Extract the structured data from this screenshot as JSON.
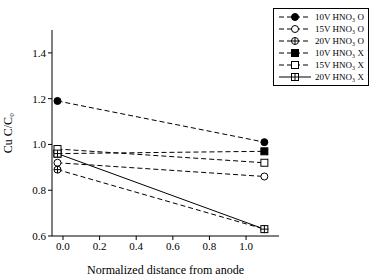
{
  "chart_data": {
    "type": "line",
    "x_label": "Normalized distance from anode",
    "y_label": "Cu C/C₀",
    "x": [
      -0.03,
      1.1
    ],
    "xlim": [
      -0.06,
      1.18
    ],
    "xticks": [
      {
        "value": 0,
        "label": "0.0"
      },
      0.2,
      0.4,
      0.6,
      0.8,
      {
        "value": 1,
        "label": "1.0"
      }
    ],
    "ylim": [
      0.6,
      1.5
    ],
    "yticks": [
      0.6,
      0.8,
      {
        "value": 1,
        "label": "1.0"
      },
      1.2,
      1.4
    ],
    "legend": "upper right",
    "series": [
      {
        "name": "10V HNO₃ O",
        "color": "#000000",
        "marker": "circle_filled",
        "line_style": "dashed",
        "values": [
          1.19,
          1.01
        ]
      },
      {
        "name": "15V HNO₃ O",
        "color": "#000000",
        "marker": "circle_open",
        "line_style": "dashed",
        "values": [
          0.92,
          0.86
        ]
      },
      {
        "name": "20V HNO₃ O",
        "color": "#000000",
        "marker": "circle_cross",
        "line_style": "dashed",
        "values": [
          0.89,
          0.63
        ]
      },
      {
        "name": "10V HNO₃ X",
        "color": "#000000",
        "marker": "square_filled",
        "line_style": "dashed",
        "values": [
          0.96,
          0.97
        ]
      },
      {
        "name": "15V HNO₃ X",
        "color": "#000000",
        "marker": "square_open",
        "line_style": "dashed",
        "values": [
          0.98,
          0.92
        ]
      },
      {
        "name": "20V HNO₃ X",
        "color": "#000000",
        "marker": "square_cross",
        "line_style": "solid",
        "values": [
          0.96,
          0.63
        ]
      }
    ]
  }
}
